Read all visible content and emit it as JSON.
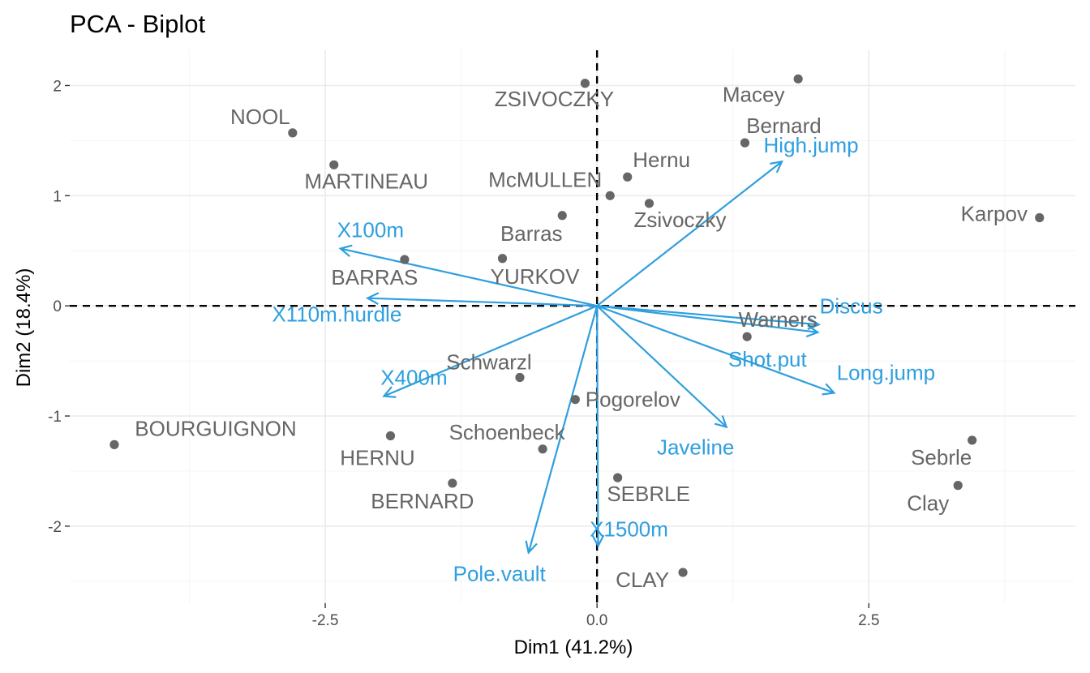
{
  "chart_data": {
    "type": "scatter",
    "title": "PCA - Biplot",
    "xlabel": "Dim1 (41.2%)",
    "ylabel": "Dim2 (18.4%)",
    "xlim": [
      -4.85,
      4.4
    ],
    "ylim": [
      -2.7,
      2.32
    ],
    "x_ticks": [
      -2.5,
      0.0,
      2.5
    ],
    "x_tick_labels": [
      "-2.5",
      "0.0",
      "2.5"
    ],
    "y_ticks": [
      -2,
      -1,
      0,
      1,
      2
    ],
    "y_tick_labels": [
      "-2",
      "-1",
      "0",
      "1",
      "2"
    ],
    "grid": true,
    "reference_lines": {
      "x": 0,
      "y": 0
    },
    "colors": {
      "individuals": "#666666",
      "variables": "#2e9fdf",
      "reference": "#000000"
    },
    "individuals": [
      {
        "name": "ZSIVOCZKY",
        "x": -0.11,
        "y": 2.02
      },
      {
        "name": "Macey",
        "x": 1.85,
        "y": 2.06
      },
      {
        "name": "NOOL",
        "x": -2.8,
        "y": 1.57
      },
      {
        "name": "Bernard",
        "x": 1.36,
        "y": 1.48
      },
      {
        "name": "MARTINEAU",
        "x": -2.42,
        "y": 1.28
      },
      {
        "name": "Hernu",
        "x": 0.28,
        "y": 1.17
      },
      {
        "name": "McMULLEN",
        "x": 0.12,
        "y": 1.0
      },
      {
        "name": "Zsivoczky",
        "x": 0.48,
        "y": 0.93
      },
      {
        "name": "Karpov",
        "x": 4.07,
        "y": 0.8
      },
      {
        "name": "Barras",
        "x": -0.32,
        "y": 0.82
      },
      {
        "name": "BARRAS",
        "x": -1.77,
        "y": 0.42
      },
      {
        "name": "YURKOV",
        "x": -0.87,
        "y": 0.43
      },
      {
        "name": "Warners",
        "x": 1.38,
        "y": -0.28
      },
      {
        "name": "Schwarzl",
        "x": -0.71,
        "y": -0.65
      },
      {
        "name": "Pogorelov",
        "x": -0.2,
        "y": -0.85
      },
      {
        "name": "BOURGUIGNON",
        "x": -4.44,
        "y": -1.26
      },
      {
        "name": "HERNU",
        "x": -1.9,
        "y": -1.18
      },
      {
        "name": "Schoenbeck",
        "x": -0.5,
        "y": -1.3
      },
      {
        "name": "Sebrle",
        "x": 3.45,
        "y": -1.22
      },
      {
        "name": "BERNARD",
        "x": -1.33,
        "y": -1.61
      },
      {
        "name": "SEBRLE",
        "x": 0.19,
        "y": -1.56
      },
      {
        "name": "Clay",
        "x": 3.32,
        "y": -1.63
      },
      {
        "name": "CLAY",
        "x": 0.79,
        "y": -2.42
      }
    ],
    "variables": [
      {
        "name": "X100m",
        "x": -2.36,
        "y": 0.52
      },
      {
        "name": "X110m.hurdle",
        "x": -2.11,
        "y": 0.07
      },
      {
        "name": "X400m",
        "x": -1.96,
        "y": -0.82
      },
      {
        "name": "High.jump",
        "x": 1.7,
        "y": 1.31
      },
      {
        "name": "Discus",
        "x": 2.04,
        "y": -0.17
      },
      {
        "name": "Shot.put",
        "x": 2.03,
        "y": -0.24
      },
      {
        "name": "Long.jump",
        "x": 2.18,
        "y": -0.79
      },
      {
        "name": "Javeline",
        "x": 1.19,
        "y": -1.1
      },
      {
        "name": "Pole.vault",
        "x": -0.63,
        "y": -2.24
      },
      {
        "name": "X1500m",
        "x": 0.01,
        "y": -2.18
      }
    ]
  }
}
